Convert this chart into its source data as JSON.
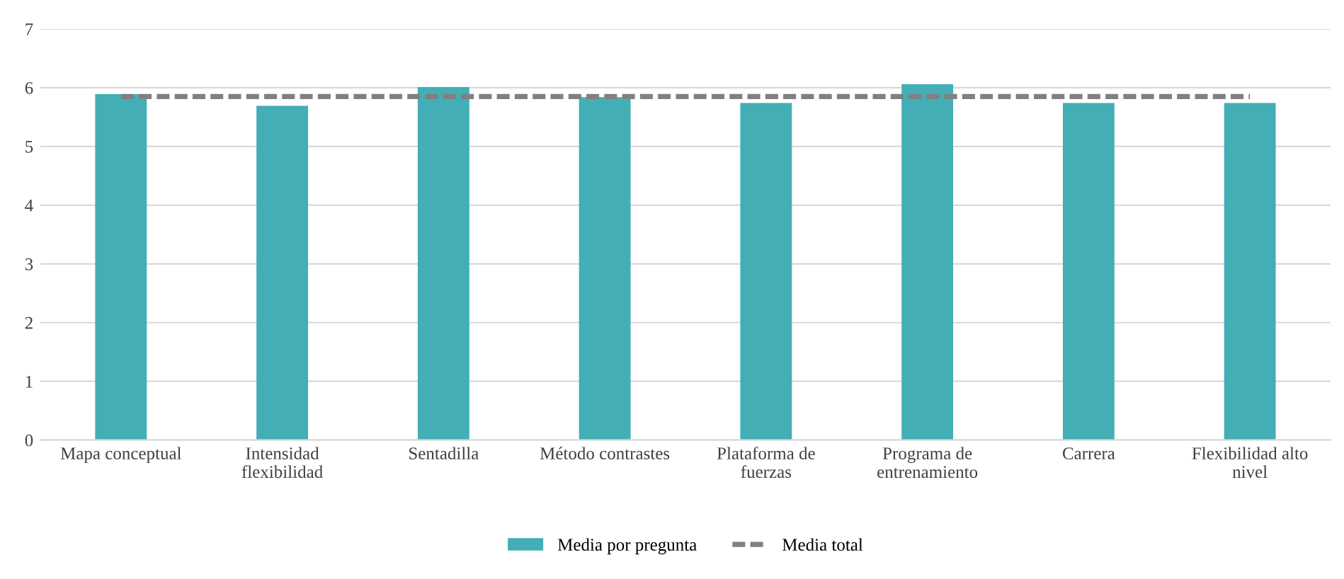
{
  "chart_data": {
    "type": "bar",
    "categories": [
      "Mapa conceptual",
      "Intensidad\nflexibilidad",
      "Sentadilla",
      "Método contrastes",
      "Plataforma de\nfuerzas",
      "Programa de\nentrenamiento",
      "Carrera",
      "Flexibilidad alto\nnivel"
    ],
    "series": [
      {
        "name": "Media por pregunta",
        "color": "#43aeb6",
        "values": [
          5.89,
          5.69,
          6.01,
          5.84,
          5.74,
          6.06,
          5.74,
          5.74
        ]
      },
      {
        "name": "Media total",
        "type": "line",
        "color": "#808080",
        "line_style": "dashed",
        "values": [
          5.85,
          5.85,
          5.85,
          5.85,
          5.85,
          5.85,
          5.85,
          5.85
        ]
      }
    ],
    "ylim": [
      0,
      7
    ],
    "yticks": [
      0,
      1,
      2,
      3,
      4,
      5,
      6,
      7
    ],
    "grid": "y",
    "legend": "bottom"
  }
}
